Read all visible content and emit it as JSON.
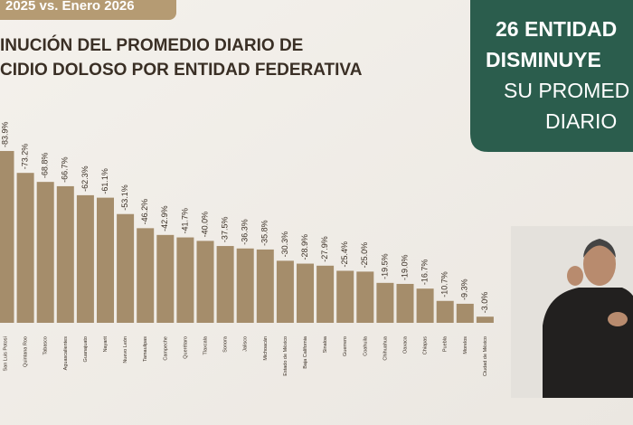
{
  "header": {
    "period": "2025 vs. Enero 2026",
    "title": [
      "INUCIÓN DEL PROMEDIO DIARIO DE",
      "CIDIO DOLOSO POR ENTIDAD FEDERATIVA"
    ]
  },
  "callout": [
    "26 ENTIDAD",
    "DISMINUYE",
    "SU PROMED",
    "DIARIO"
  ],
  "chart_data": {
    "type": "bar",
    "color": "#a58d6b",
    "categories": [
      "San Luis Potosí",
      "Quintana Roo",
      "Tabasco",
      "Aguascalientes",
      "Guanajuato",
      "Nayarit",
      "Nuevo León",
      "Tamaulipas",
      "Campeche",
      "Querétaro",
      "Tlaxcala",
      "Sonora",
      "Jalisco",
      "Michoacán",
      "Estado de México",
      "Baja California",
      "Sinaloa",
      "Guerrero",
      "Coahuila",
      "Chihuahua",
      "Oaxaca",
      "Chiapas",
      "Puebla",
      "Morelos",
      "Ciudad de México"
    ],
    "values": [
      -83.9,
      -73.2,
      -68.8,
      -66.7,
      -62.3,
      -61.1,
      -53.1,
      -46.2,
      -42.9,
      -41.7,
      -40.0,
      -37.5,
      -36.3,
      -35.8,
      -30.3,
      -28.9,
      -27.9,
      -25.4,
      -25.0,
      -19.5,
      -19.0,
      -16.7,
      -10.7,
      -9.3,
      -3.0
    ],
    "value_labels": [
      "-83.9%",
      "-73.2%",
      "-68.8%",
      "-66.7%",
      "-62.3%",
      "-61.1%",
      "-53.1%",
      "-46.2%",
      "-42.9%",
      "-41.7%",
      "-40.0%",
      "-37.5%",
      "-36.3%",
      "-35.8%",
      "-30.3%",
      "-28.9%",
      "-27.9%",
      "-25.4%",
      "-25.0%",
      "-19.5%",
      "-19.0%",
      "-16.7%",
      "-10.7%",
      "-9.3%",
      "-3.0%"
    ]
  }
}
